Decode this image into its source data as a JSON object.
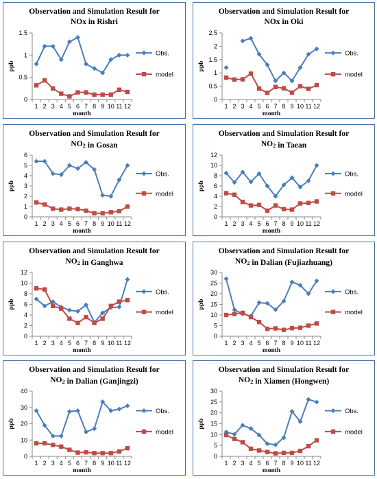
{
  "colors": {
    "obs": "#4a7ebb",
    "model": "#be4b48",
    "axis": "#888888",
    "frame": "#4a6fa5"
  },
  "chart_data": [
    {
      "type": "line",
      "title": "Observation and Simulation Result for",
      "subtitle": "NOx in Rishri",
      "xlabel": "month",
      "ylabel": "ppb",
      "x": [
        1,
        2,
        3,
        4,
        5,
        6,
        7,
        8,
        9,
        10,
        11,
        12
      ],
      "ylim": [
        0,
        1.5
      ],
      "yticks": [
        0,
        0.5,
        1,
        1.5
      ],
      "yticklabels": [
        "0",
        "0.5",
        "1",
        "1.5"
      ],
      "legend": "right",
      "grid": false,
      "series": [
        {
          "name": "Obs.",
          "values": [
            0.8,
            1.2,
            1.2,
            0.9,
            1.3,
            1.4,
            0.8,
            0.7,
            0.6,
            0.9,
            1.0,
            1.0
          ]
        },
        {
          "name": "model",
          "values": [
            0.32,
            0.43,
            0.25,
            0.13,
            0.07,
            0.16,
            0.16,
            0.11,
            0.11,
            0.11,
            0.22,
            0.17
          ]
        }
      ]
    },
    {
      "type": "line",
      "title": "Observation and Simulation Result for",
      "subtitle": "NOx in Oki",
      "xlabel": "month",
      "ylabel": "ppb",
      "x": [
        1,
        2,
        3,
        4,
        5,
        6,
        7,
        8,
        9,
        10,
        11,
        12
      ],
      "ylim": [
        0,
        2.5
      ],
      "yticks": [
        0,
        0.5,
        1,
        1.5,
        2,
        2.5
      ],
      "yticklabels": [
        "0",
        "0.5",
        "1",
        "1.5",
        "2",
        "2.5"
      ],
      "legend": "right",
      "grid": false,
      "series": [
        {
          "name": "Obs.",
          "values": [
            1.2,
            null,
            2.2,
            2.3,
            1.7,
            1.3,
            0.7,
            1.0,
            0.7,
            1.2,
            1.7,
            1.9
          ]
        },
        {
          "name": "model",
          "values": [
            0.82,
            0.75,
            0.76,
            0.97,
            0.41,
            0.25,
            0.47,
            0.42,
            0.26,
            0.5,
            0.4,
            0.54
          ]
        }
      ]
    },
    {
      "type": "line",
      "title": "Observation and Simulation Result for",
      "subtitle": "NO2 in Gosan",
      "xlabel": "month",
      "ylabel": "ppb",
      "x": [
        1,
        2,
        3,
        4,
        5,
        6,
        7,
        8,
        9,
        10,
        11,
        12
      ],
      "ylim": [
        0,
        6
      ],
      "yticks": [
        0,
        1,
        2,
        3,
        4,
        5,
        6
      ],
      "yticklabels": [
        "0",
        "1",
        "2",
        "3",
        "4",
        "5",
        "6"
      ],
      "legend": "right",
      "grid": false,
      "series": [
        {
          "name": "Obs.",
          "values": [
            5.4,
            5.4,
            4.2,
            4.1,
            5.0,
            4.7,
            5.3,
            4.6,
            2.1,
            2.0,
            3.6,
            5.0
          ]
        },
        {
          "name": "model",
          "values": [
            1.4,
            1.2,
            0.8,
            0.7,
            0.8,
            0.75,
            0.6,
            0.35,
            0.35,
            0.45,
            0.55,
            1.0
          ]
        }
      ]
    },
    {
      "type": "line",
      "title": "Observation and Simulation Result for",
      "subtitle": "NO2 in Taean",
      "xlabel": "month",
      "ylabel": "ppb",
      "x": [
        1,
        2,
        3,
        4,
        5,
        6,
        7,
        8,
        9,
        10,
        11,
        12
      ],
      "ylim": [
        0,
        12
      ],
      "yticks": [
        0,
        2,
        4,
        6,
        8,
        10,
        12
      ],
      "yticklabels": [
        "0",
        "2",
        "4",
        "6",
        "8",
        "10",
        "12"
      ],
      "legend": "right",
      "grid": false,
      "series": [
        {
          "name": "Obs.",
          "values": [
            8.5,
            6.7,
            8.7,
            6.8,
            8.4,
            6.0,
            4.0,
            6.2,
            7.6,
            5.8,
            7.0,
            10.0
          ]
        },
        {
          "name": "model",
          "values": [
            4.6,
            4.3,
            2.9,
            2.2,
            2.3,
            1.2,
            2.2,
            1.5,
            1.4,
            2.6,
            2.7,
            3.0
          ]
        }
      ]
    },
    {
      "type": "line",
      "title": "Observation and Simulation Result for",
      "subtitle": "NO2 in Ganghwa",
      "xlabel": "month",
      "ylabel": "ppb",
      "x": [
        1,
        2,
        3,
        4,
        5,
        6,
        7,
        8,
        9,
        10,
        11,
        12
      ],
      "ylim": [
        0,
        12
      ],
      "yticks": [
        0,
        2,
        4,
        6,
        8,
        10,
        12
      ],
      "yticklabels": [
        "0",
        "2",
        "4",
        "6",
        "8",
        "10",
        "12"
      ],
      "legend": "right",
      "grid": false,
      "series": [
        {
          "name": "Obs.",
          "values": [
            7.0,
            5.7,
            6.5,
            5.5,
            4.9,
            4.7,
            5.9,
            2.6,
            4.4,
            5.4,
            5.5,
            10.7
          ]
        },
        {
          "name": "model",
          "values": [
            9.0,
            8.8,
            5.7,
            5.2,
            3.3,
            2.5,
            3.6,
            2.5,
            3.3,
            5.7,
            6.5,
            6.8
          ]
        }
      ]
    },
    {
      "type": "line",
      "title": "Observation and Simulation Result for",
      "subtitle": "NO2 in Dalian (Fujiazhuang)",
      "xlabel": "month",
      "ylabel": "ppb",
      "x": [
        1,
        2,
        3,
        4,
        5,
        6,
        7,
        8,
        9,
        10,
        11,
        12
      ],
      "ylim": [
        0,
        30
      ],
      "yticks": [
        0,
        5,
        10,
        15,
        20,
        25,
        30
      ],
      "yticklabels": [
        "0",
        "5",
        "10",
        "15",
        "20",
        "25",
        "30"
      ],
      "legend": "right",
      "grid": false,
      "series": [
        {
          "name": "Obs.",
          "values": [
            27,
            12.5,
            10.5,
            9.5,
            15.8,
            15.5,
            12.5,
            16.5,
            25.5,
            24,
            20,
            26
          ]
        },
        {
          "name": "model",
          "values": [
            10,
            10.5,
            11,
            9,
            6.7,
            3.5,
            3.7,
            3,
            3.8,
            4,
            5,
            6
          ]
        }
      ]
    },
    {
      "type": "line",
      "title": "Observation and Simulation Result for",
      "subtitle": "NO2 in Dalian (Ganjingzi)",
      "xlabel": "month",
      "ylabel": "ppb",
      "x": [
        1,
        2,
        3,
        4,
        5,
        6,
        7,
        8,
        9,
        10,
        11,
        12
      ],
      "ylim": [
        0,
        40
      ],
      "yticks": [
        0,
        10,
        20,
        30,
        40
      ],
      "yticklabels": [
        "0",
        "10",
        "20",
        "30",
        "40"
      ],
      "legend": "right",
      "grid": false,
      "series": [
        {
          "name": "Obs.",
          "values": [
            28,
            19,
            12.5,
            12.5,
            27.5,
            28,
            15,
            17,
            33.5,
            28,
            29,
            31
          ]
        },
        {
          "name": "model",
          "values": [
            8,
            8,
            7,
            6,
            4,
            2.3,
            2.5,
            2,
            2,
            2,
            3,
            5
          ]
        }
      ]
    },
    {
      "type": "line",
      "title": "Observation and Simulation Result for",
      "subtitle": "NO2 in Xiamen (Hongwen)",
      "xlabel": "month",
      "ylabel": "ppb",
      "x": [
        1,
        2,
        3,
        4,
        5,
        6,
        7,
        8,
        9,
        10,
        11,
        12
      ],
      "ylim": [
        0,
        30
      ],
      "yticks": [
        0,
        5,
        10,
        15,
        20,
        25,
        30
      ],
      "yticklabels": [
        "0",
        "5",
        "10",
        "15",
        "20",
        "25",
        "30"
      ],
      "legend": "right",
      "grid": false,
      "series": [
        {
          "name": "Obs.",
          "values": [
            11.2,
            10.2,
            14.3,
            12.8,
            9.8,
            5.8,
            5.3,
            8.6,
            20.7,
            16,
            26.2,
            25
          ]
        },
        {
          "name": "model",
          "values": [
            9.8,
            8,
            6.5,
            3.5,
            2.7,
            2,
            1.4,
            1.6,
            1.6,
            2.5,
            4.7,
            7.4
          ]
        }
      ]
    }
  ]
}
